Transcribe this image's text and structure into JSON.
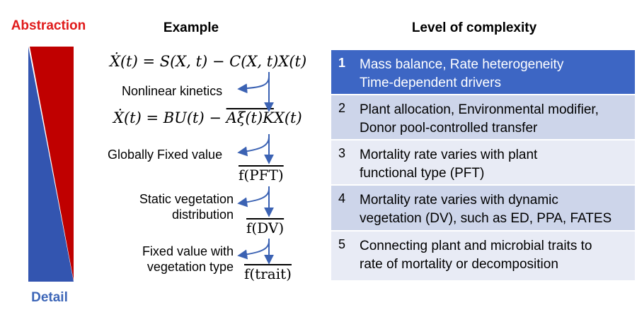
{
  "labels": {
    "abstraction": "Abstraction",
    "detail": "Detail",
    "example_header": "Example",
    "level_header": "Level of complexity"
  },
  "colors": {
    "abstraction_red": "#e01b1b",
    "detail_blue": "#3d66b8",
    "wedge_red": "#c00000",
    "wedge_blue": "#3355b0",
    "row_dark": "#3d66c4",
    "row_mid": "#cdd5ea",
    "row_light": "#e8ebf5"
  },
  "equations": {
    "eq1": "Ẋ(t) = S(X, t) − C(X, t)X(t)",
    "eq2_left": "Ẋ(t) = BU(t) − ",
    "eq2_over": "Aξ(t)K",
    "eq2_right": "X(t)"
  },
  "steps": [
    {
      "note": "Nonlinear kinetics"
    },
    {
      "note": "Globally Fixed value",
      "result": "f(PFT)"
    },
    {
      "note_lines": [
        "Static vegetation",
        "distribution"
      ],
      "result": "f(DV)"
    },
    {
      "note_lines": [
        "Fixed value with",
        "vegetation type"
      ],
      "result": "f(trait)"
    }
  ],
  "levels": [
    {
      "num": "1",
      "lines": [
        "Mass balance, Rate heterogeneity",
        "Time-dependent drivers"
      ]
    },
    {
      "num": "2",
      "lines": [
        "Plant allocation, Environmental modifier,",
        "Donor pool-controlled transfer"
      ]
    },
    {
      "num": "3",
      "lines": [
        "Mortality rate varies with plant",
        "functional type (PFT)"
      ]
    },
    {
      "num": "4",
      "lines": [
        "Mortality rate varies with dynamic",
        "vegetation (DV), such as ED, PPA, FATES"
      ]
    },
    {
      "num": "5",
      "lines": [
        "Connecting plant and microbial traits to",
        "rate of mortality or decomposition"
      ]
    }
  ]
}
